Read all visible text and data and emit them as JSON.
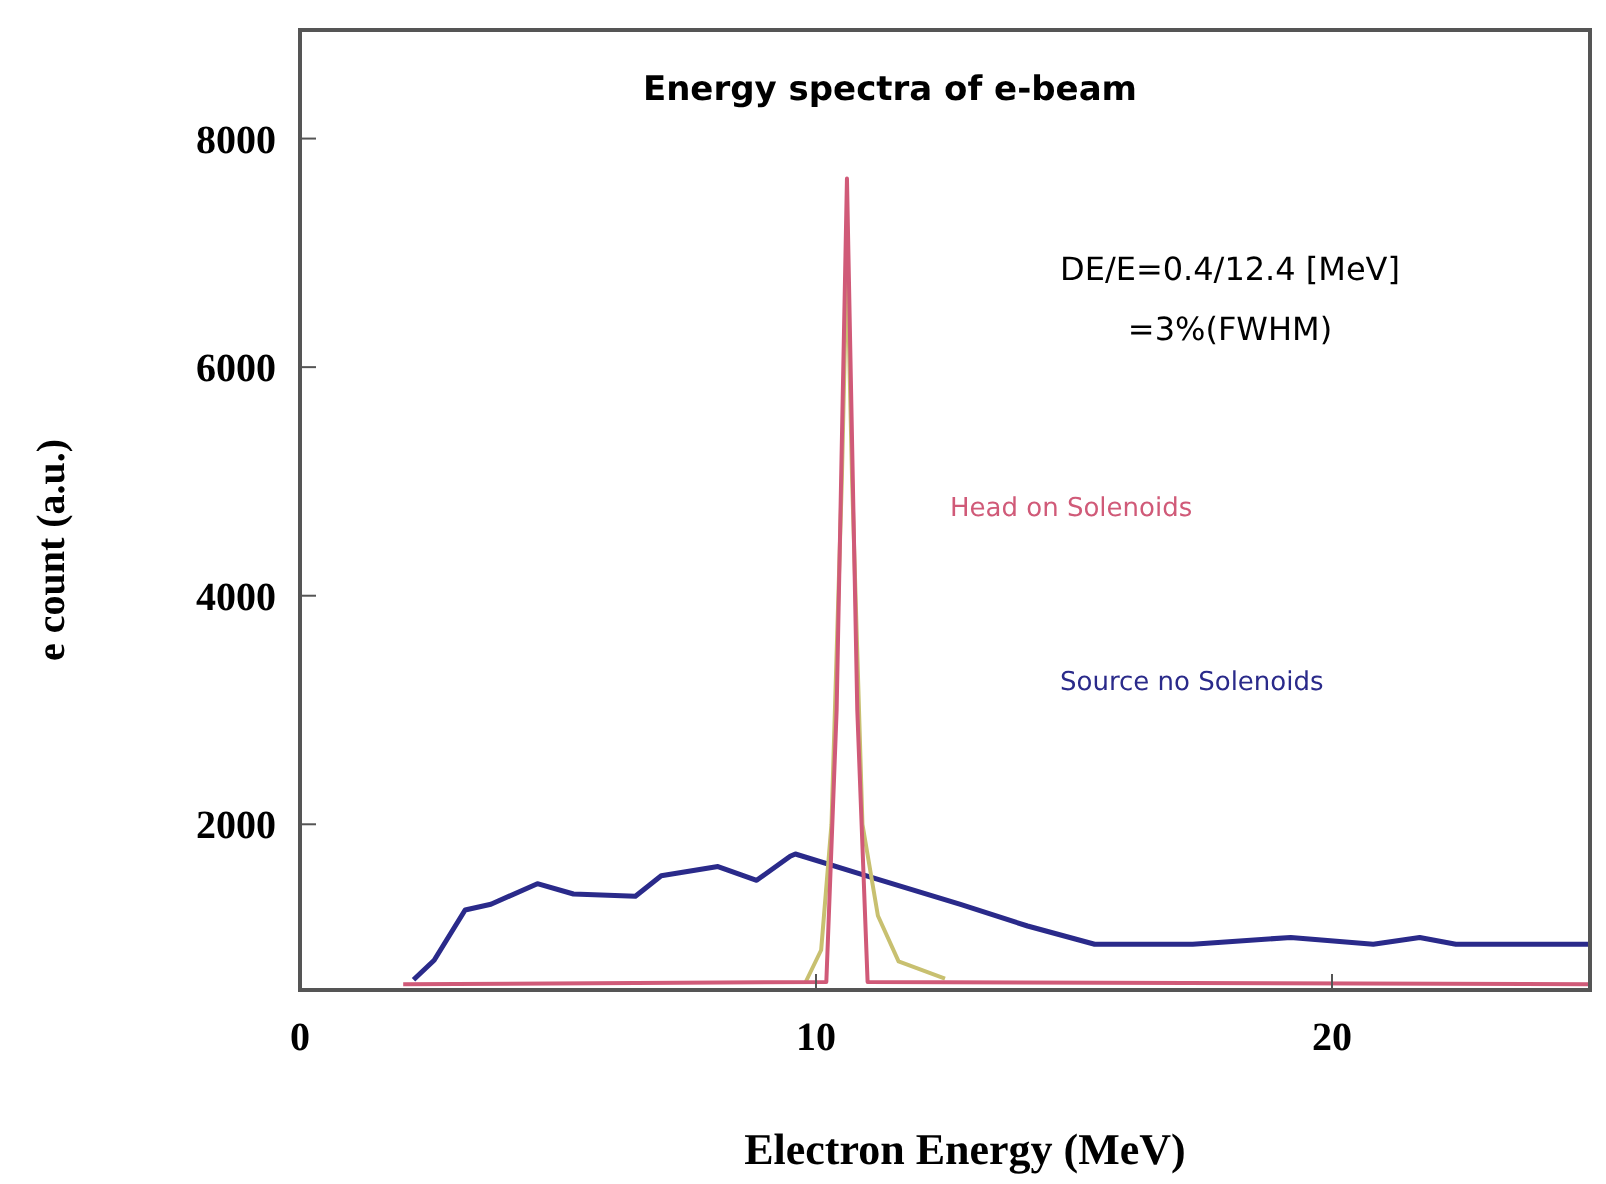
{
  "chart_data": {
    "type": "line",
    "title": "Energy spectra of e-beam",
    "xlabel": "Electron Energy (MeV)",
    "ylabel": "e count (a.u.)",
    "annotations": [
      "DE/E=0.4/12.4 [MeV]",
      "=3%(FWHM)"
    ],
    "xlim": [
      0,
      25
    ],
    "ylim": [
      550,
      8950
    ],
    "xticks": [
      0,
      10,
      20
    ],
    "yticks": [
      2000,
      4000,
      6000,
      8000
    ],
    "grid": false,
    "marker": "none",
    "line_style": "solid",
    "series": [
      {
        "name": "Source no Solenoids",
        "color": "#2a2a8a",
        "x": [
          2.2,
          2.6,
          3.2,
          3.7,
          4.6,
          5.3,
          6.5,
          7.0,
          8.1,
          8.85,
          9.5,
          9.6,
          10.9,
          12.8,
          14.1,
          15.4,
          17.3,
          19.2,
          20.8,
          21.7,
          22.4,
          25
        ],
        "values": [
          640,
          810,
          1250,
          1300,
          1480,
          1390,
          1370,
          1550,
          1630,
          1510,
          1720,
          1740,
          1560,
          1300,
          1110,
          950,
          950,
          1010,
          950,
          1010,
          950,
          950
        ]
      },
      {
        "color": "#c8c070",
        "x": [
          9.8,
          10.1,
          10.3,
          10.5,
          10.6,
          10.7,
          10.9,
          11.2,
          11.6,
          12.5
        ],
        "values": [
          620,
          900,
          2000,
          5000,
          7000,
          5000,
          2000,
          1200,
          800,
          650
        ]
      },
      {
        "name": "Head on Solenoids",
        "color": "#d05a78",
        "x": [
          2.0,
          10.2,
          10.4,
          10.6,
          10.8,
          11.0,
          25
        ],
        "values": [
          600,
          620,
          3000,
          7650,
          3000,
          620,
          600
        ]
      }
    ]
  }
}
